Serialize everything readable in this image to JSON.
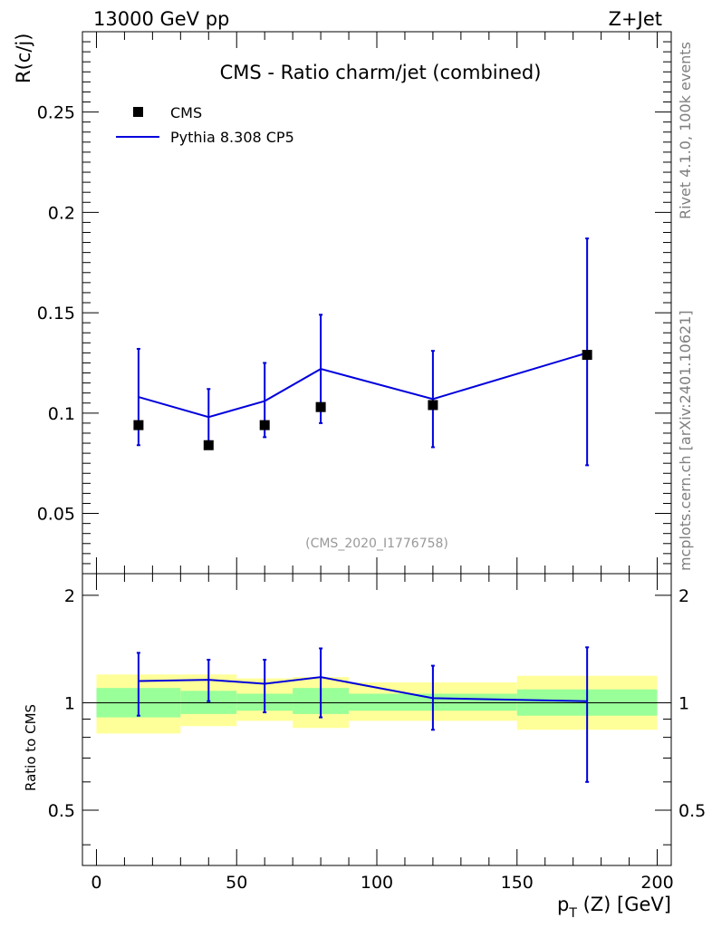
{
  "header": {
    "left": "13000 GeV pp",
    "right": "Z+Jet"
  },
  "side": {
    "rivet": "Rivet 4.1.0,  100k events",
    "mcplots": "mcplots.cern.ch [arXiv:2401.10621]"
  },
  "colors": {
    "mc_line": "#0000dd",
    "band_inner": "#99ff99",
    "band_outer": "#ffff99",
    "data_marker": "#000000"
  },
  "chart_data": [
    {
      "id": "main",
      "type": "scatter",
      "title": "CMS - Ratio charm/jet (combined)",
      "ylabel": "R(c/j)",
      "xlabel": "",
      "xlim": [
        -5,
        205
      ],
      "ylim": [
        0.02,
        0.29
      ],
      "yticks": [
        0.05,
        0.1,
        0.15,
        0.2,
        0.25
      ],
      "yticklabels": [
        "0.05",
        "0.1",
        "0.15",
        "0.2",
        "0.25"
      ],
      "watermark": "(CMS_2020_I1776758)",
      "legend": [
        {
          "label": "CMS",
          "kind": "marker"
        },
        {
          "label": "Pythia 8.308 CP5",
          "kind": "line"
        }
      ],
      "legend_position": "top-left",
      "data": {
        "name": "CMS",
        "x": [
          15,
          40,
          60,
          80,
          120,
          175
        ],
        "y": [
          0.094,
          0.084,
          0.094,
          0.103,
          0.104,
          0.129
        ]
      },
      "mc": {
        "name": "Pythia 8.308 CP5",
        "x": [
          15,
          40,
          60,
          80,
          120,
          175
        ],
        "y": [
          0.108,
          0.098,
          0.106,
          0.122,
          0.107,
          0.13
        ],
        "err_low": [
          0.084,
          0.086,
          0.088,
          0.095,
          0.083,
          0.074
        ],
        "err_high": [
          0.132,
          0.112,
          0.125,
          0.149,
          0.131,
          0.187
        ]
      }
    },
    {
      "id": "ratio",
      "type": "line",
      "ylabel": "Ratio to CMS",
      "xlabel": "p_T (Z) [GeV]",
      "xlim": [
        -5,
        205
      ],
      "ylim": [
        0.35,
        2.3
      ],
      "yscale": "log",
      "xticks": [
        0,
        50,
        100,
        150,
        200
      ],
      "xticklabels": [
        "0",
        "50",
        "100",
        "150",
        "200"
      ],
      "yticks": [
        0.5,
        1,
        2
      ],
      "yticklabels": [
        "0.5",
        "1",
        "2"
      ],
      "bands": [
        {
          "x0": 0,
          "x1": 30,
          "inner": [
            0.91,
            1.1
          ],
          "outer": [
            0.82,
            1.2
          ]
        },
        {
          "x0": 30,
          "x1": 50,
          "inner": [
            0.93,
            1.08
          ],
          "outer": [
            0.86,
            1.2
          ]
        },
        {
          "x0": 50,
          "x1": 70,
          "inner": [
            0.95,
            1.06
          ],
          "outer": [
            0.89,
            1.17
          ]
        },
        {
          "x0": 70,
          "x1": 90,
          "inner": [
            0.93,
            1.1
          ],
          "outer": [
            0.85,
            1.18
          ]
        },
        {
          "x0": 90,
          "x1": 150,
          "inner": [
            0.95,
            1.06
          ],
          "outer": [
            0.89,
            1.14
          ]
        },
        {
          "x0": 150,
          "x1": 200,
          "inner": [
            0.92,
            1.09
          ],
          "outer": [
            0.84,
            1.19
          ]
        }
      ],
      "ratio": {
        "x": [
          15,
          40,
          60,
          80,
          120,
          175
        ],
        "y": [
          1.15,
          1.16,
          1.13,
          1.18,
          1.03,
          1.01
        ],
        "err_low": [
          0.92,
          1.01,
          0.94,
          0.91,
          0.84,
          0.6
        ],
        "err_high": [
          1.38,
          1.32,
          1.32,
          1.42,
          1.27,
          1.43
        ]
      }
    }
  ]
}
